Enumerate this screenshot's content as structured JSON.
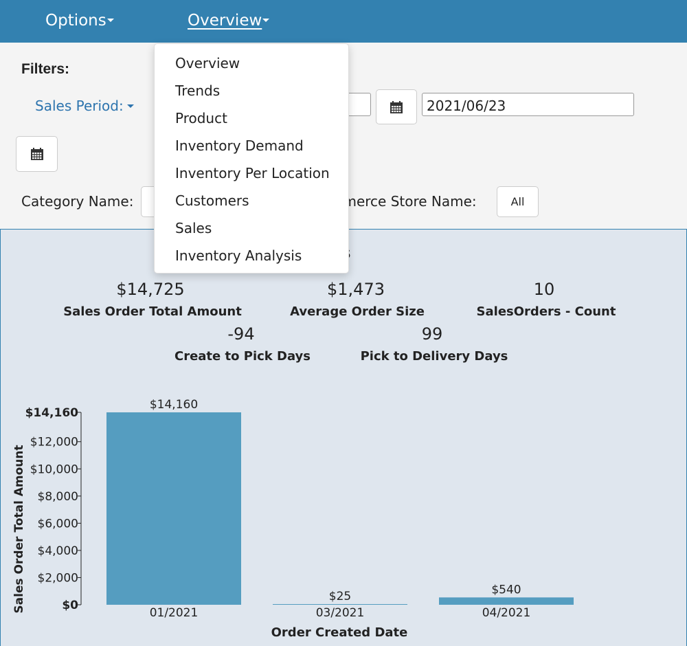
{
  "nav": {
    "options_label": "Options",
    "overview_label": "Overview"
  },
  "filters": {
    "title": "Filters:",
    "sales_period_label": "Sales Period:",
    "end_date_value": "2021/06/23",
    "category_label": "Category Name:",
    "store_label": "mmerce Store Name:",
    "store_value": "All"
  },
  "dropdown": {
    "items": [
      "Overview",
      "Trends",
      "Product",
      "Inventory Demand",
      "Inventory Per Location",
      "Customers",
      "Sales",
      "Inventory Analysis"
    ]
  },
  "panel": {
    "title_visible": "ers"
  },
  "kpis": [
    {
      "value": "$14,725",
      "label": "Sales Order Total Amount"
    },
    {
      "value": "$1,473",
      "label": "Average Order Size"
    },
    {
      "value": "10",
      "label": "SalesOrders - Count"
    },
    {
      "value": "-94",
      "label": "Create to Pick Days"
    },
    {
      "value": "99",
      "label": "Pick to Delivery Days"
    }
  ],
  "colors": {
    "nav_bg": "#3381b0",
    "bar": "#559dc0",
    "panel_bg": "#dfe6ee",
    "link": "#2d74ae"
  },
  "chart_data": {
    "type": "bar",
    "categories": [
      "01/2021",
      "03/2021",
      "04/2021"
    ],
    "values": [
      14160,
      25,
      540
    ],
    "data_labels": [
      "$14,160",
      "$25",
      "$540"
    ],
    "xlabel": "Order Created Date",
    "ylabel": "Sales Order Total Amount",
    "ylim": [
      0,
      14160
    ],
    "y_ticks": [
      0,
      2000,
      4000,
      6000,
      8000,
      10000,
      12000,
      14160
    ],
    "y_tick_labels": [
      "$0",
      "$2,000",
      "$4,000",
      "$6,000",
      "$8,000",
      "$10,000",
      "$12,000",
      "$14,160"
    ],
    "grid": false
  }
}
